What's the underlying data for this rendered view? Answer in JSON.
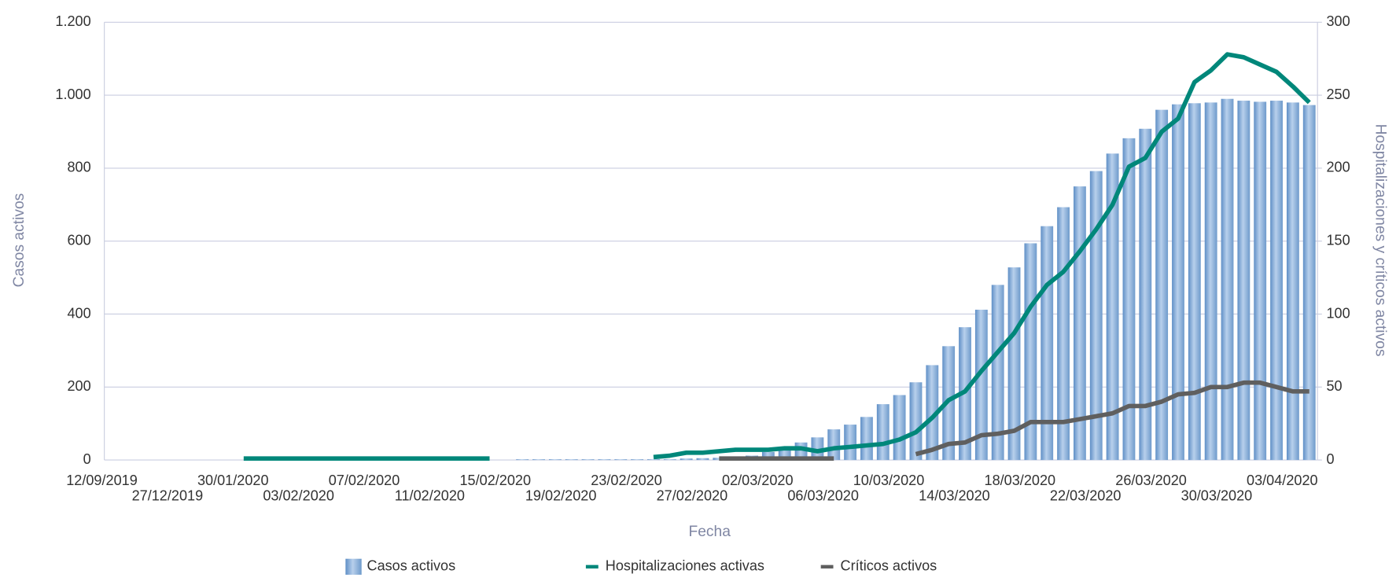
{
  "chart_data": {
    "type": "bar-line",
    "x_title": "Fecha",
    "y_title": "Casos activos",
    "y2_title": "Hospitalizaciones y críticos activos",
    "categories": [
      "12/09/2019",
      null,
      null,
      null,
      "27/12/2019",
      null,
      null,
      null,
      "30/01/2020",
      null,
      null,
      null,
      "03/02/2020",
      null,
      null,
      null,
      "07/02/2020",
      null,
      null,
      null,
      "11/02/2020",
      null,
      null,
      null,
      "15/02/2020",
      null,
      null,
      null,
      "19/02/2020",
      null,
      null,
      null,
      "23/02/2020",
      null,
      null,
      null,
      "27/02/2020",
      null,
      null,
      null,
      "02/03/2020",
      null,
      null,
      null,
      "06/03/2020",
      null,
      null,
      null,
      "10/03/2020",
      null,
      null,
      null,
      "14/03/2020",
      null,
      null,
      null,
      "18/03/2020",
      null,
      null,
      null,
      "22/03/2020",
      null,
      null,
      null,
      "26/03/2020",
      null,
      null,
      null,
      "30/03/2020",
      null,
      null,
      null,
      "03/04/2020",
      null
    ],
    "ylim": [
      0,
      1200
    ],
    "yticks": [
      0,
      200,
      400,
      600,
      800,
      {
        "value": 1000,
        "label": "1.000"
      },
      {
        "value": 1200,
        "label": "1.200"
      }
    ],
    "y2lim": [
      0,
      300
    ],
    "y2ticks": [
      0,
      50,
      100,
      150,
      200,
      250,
      300
    ],
    "grid": true,
    "legend": "bottom",
    "series": [
      {
        "name": "Casos activos",
        "kind": "bar",
        "color": "#8db3dd",
        "values": [
          0,
          0,
          0,
          0,
          0,
          0,
          0,
          0,
          0,
          0,
          0,
          0,
          0,
          0,
          0,
          0,
          0,
          0,
          0,
          0,
          0,
          0,
          0,
          0,
          0,
          2,
          2,
          2,
          2,
          2,
          2,
          2,
          2,
          2,
          2,
          4,
          5,
          6,
          8,
          12,
          22,
          33,
          48,
          62,
          84,
          97,
          118,
          153,
          178,
          213,
          260,
          312,
          364,
          412,
          480,
          528,
          594,
          641,
          693,
          750,
          792,
          840,
          882,
          908,
          960,
          975,
          978,
          980,
          990,
          985,
          982,
          985,
          980,
          973
        ]
      },
      {
        "name": "Hospitalizaciones activas",
        "kind": "line",
        "axis": "y2",
        "color": "#00877a",
        "values": [
          null,
          null,
          null,
          null,
          null,
          null,
          null,
          null,
          1,
          1,
          1,
          1,
          1,
          1,
          1,
          1,
          1,
          1,
          1,
          1,
          1,
          1,
          1,
          1,
          null,
          null,
          null,
          null,
          null,
          null,
          null,
          null,
          null,
          2,
          3,
          5,
          5,
          6,
          7,
          7,
          7,
          8,
          8,
          6,
          8,
          9,
          10,
          11,
          14,
          19,
          29,
          41,
          47,
          61,
          74,
          87,
          105,
          120,
          129,
          143,
          158,
          175,
          201,
          207,
          225,
          234,
          259,
          267,
          278,
          276,
          271,
          266,
          256,
          245
        ]
      },
      {
        "name": "Críticos activos",
        "kind": "line",
        "axis": "y2",
        "color": "#5f5f5f",
        "values": [
          null,
          null,
          null,
          null,
          null,
          null,
          null,
          null,
          null,
          null,
          null,
          null,
          null,
          null,
          null,
          null,
          null,
          null,
          null,
          null,
          null,
          null,
          null,
          null,
          null,
          null,
          null,
          null,
          null,
          null,
          null,
          null,
          null,
          null,
          null,
          null,
          null,
          1,
          1,
          1,
          1,
          1,
          1,
          1,
          1,
          null,
          null,
          null,
          null,
          4,
          7,
          11,
          12,
          17,
          18,
          20,
          26,
          26,
          26,
          28,
          30,
          32,
          37,
          37,
          40,
          45,
          46,
          50,
          50,
          53,
          53,
          50,
          47,
          47
        ]
      }
    ]
  }
}
